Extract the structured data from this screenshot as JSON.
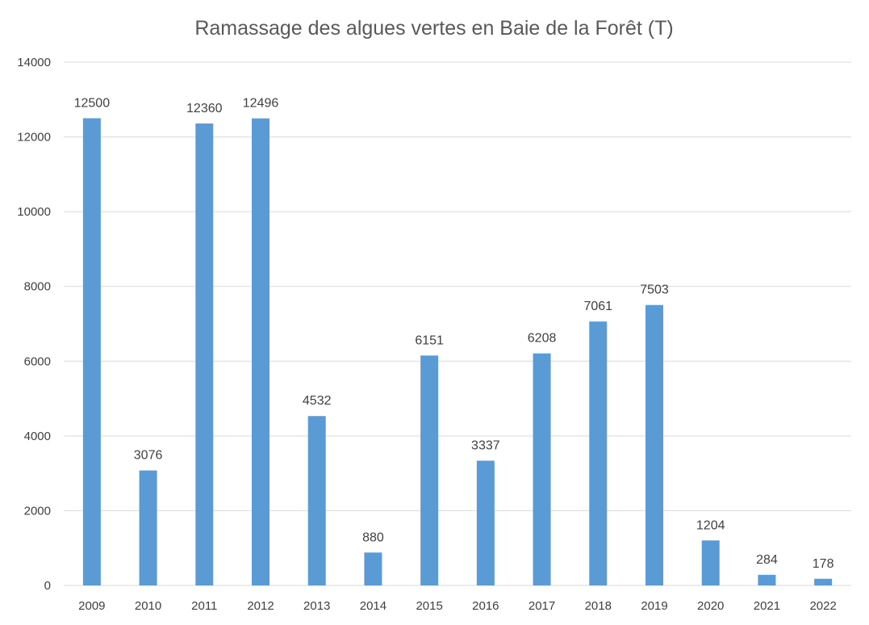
{
  "chart_data": {
    "type": "bar",
    "title": "Ramassage des algues vertes en Baie de la Forêt (T)",
    "xlabel": "",
    "ylabel": "",
    "categories": [
      "2009",
      "2010",
      "2011",
      "2012",
      "2013",
      "2014",
      "2015",
      "2016",
      "2017",
      "2018",
      "2019",
      "2020",
      "2021",
      "2022"
    ],
    "values": [
      12500,
      3076,
      12360,
      12496,
      4532,
      880,
      6151,
      3337,
      6208,
      7061,
      7503,
      1204,
      284,
      178
    ],
    "data_labels": [
      "12500",
      "3076",
      "12360",
      "12496",
      "4532",
      "880",
      "6151",
      "3337",
      "6208",
      "7061",
      "7503",
      "1204",
      "284",
      "178"
    ],
    "ylim": [
      0,
      14000
    ],
    "yticks": [
      "0",
      "2000",
      "4000",
      "6000",
      "8000",
      "10000",
      "12000",
      "14000"
    ],
    "grid": true,
    "legend": "none",
    "bar_color": "#5b9bd5"
  }
}
